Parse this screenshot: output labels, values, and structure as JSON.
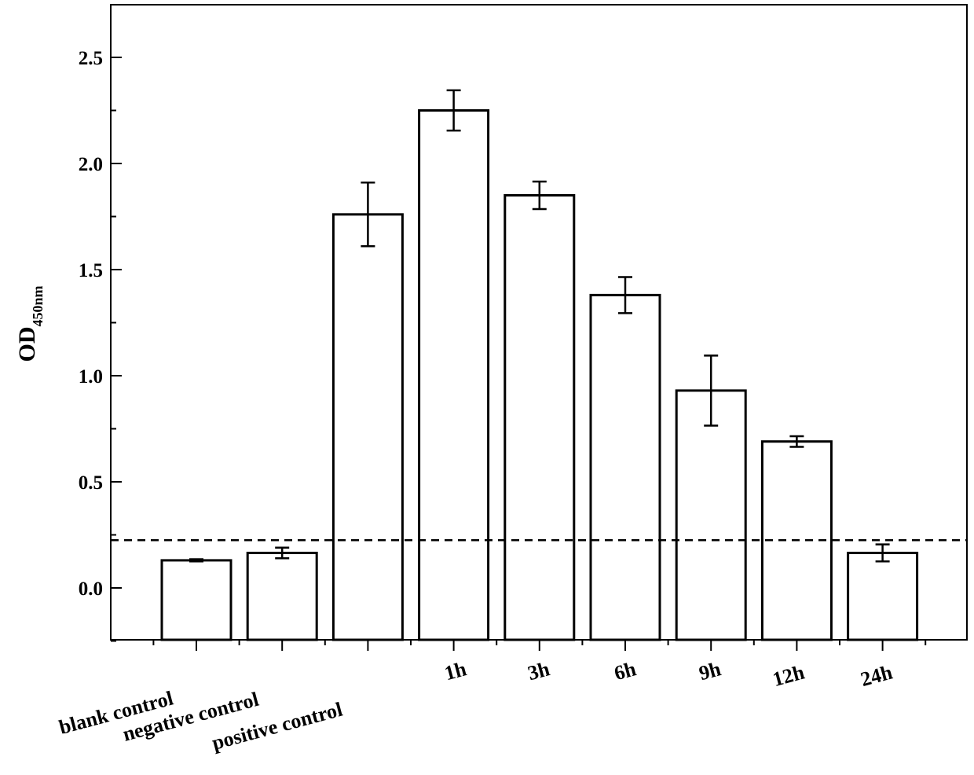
{
  "chart_data": {
    "type": "bar",
    "title": "",
    "xlabel": "",
    "ylabel": "OD",
    "ylabel_subscript": "450nm",
    "ylim": [
      -0.25,
      2.75
    ],
    "yticks": [
      "0.0",
      "0.5",
      "1.0",
      "1.5",
      "2.0",
      "2.5"
    ],
    "categories": [
      "blank control",
      "negative control",
      "positive control",
      "1h",
      "3h",
      "6h",
      "9h",
      "12h",
      "24h"
    ],
    "values": [
      0.13,
      0.165,
      1.76,
      2.25,
      1.85,
      1.38,
      0.93,
      0.69,
      0.165
    ],
    "errors": [
      0.005,
      0.025,
      0.15,
      0.095,
      0.065,
      0.085,
      0.165,
      0.025,
      0.04
    ],
    "threshold": 0.225,
    "grid": false,
    "legend": "none",
    "colors": {
      "bar_fill": "#ffffff",
      "bar_stroke": "#000000",
      "threshold_line": "#000000"
    }
  }
}
